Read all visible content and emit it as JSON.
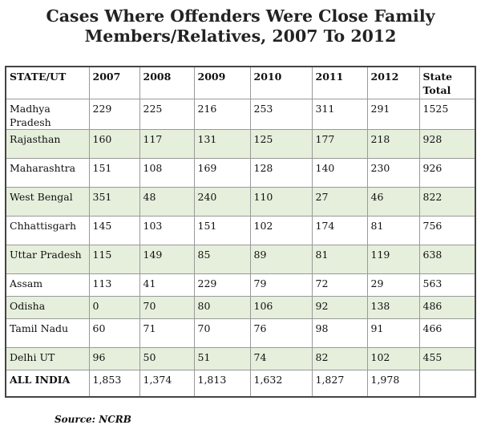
{
  "title_lines": [
    "Cases Where Offenders Were Close Family",
    "Members/Relatives, 2007 To 2012"
  ],
  "chart_data": {
    "type": "table",
    "title": "Cases Where Offenders Were Close Family Members/Relatives, 2007 To 2012",
    "columns": [
      "STATE/UT",
      "2007",
      "2008",
      "2009",
      "2010",
      "2011",
      "2012",
      "State Total"
    ],
    "rows": [
      {
        "state": "Madhya Pradesh",
        "values": [
          "229",
          "225",
          "216",
          "253",
          "311",
          "291",
          "1525"
        ]
      },
      {
        "state": "Rajasthan",
        "values": [
          "160",
          "117",
          "131",
          "125",
          "177",
          "218",
          "928"
        ]
      },
      {
        "state": "Maharashtra",
        "values": [
          "151",
          "108",
          "169",
          "128",
          "140",
          "230",
          "926"
        ]
      },
      {
        "state": "West Bengal",
        "values": [
          "351",
          "48",
          "240",
          "110",
          "27",
          "46",
          "822"
        ]
      },
      {
        "state": "Chhattisgarh",
        "values": [
          "145",
          "103",
          "151",
          "102",
          "174",
          "81",
          "756"
        ]
      },
      {
        "state": "Uttar Pradesh",
        "values": [
          "115",
          "149",
          "85",
          "89",
          "81",
          "119",
          "638"
        ]
      },
      {
        "state": "Assam",
        "values": [
          "113",
          "41",
          "229",
          "79",
          "72",
          "29",
          "563"
        ]
      },
      {
        "state": "Odisha",
        "values": [
          "0",
          "70",
          "80",
          "106",
          "92",
          "138",
          "486"
        ]
      },
      {
        "state": "Tamil Nadu",
        "values": [
          "60",
          "71",
          "70",
          "76",
          "98",
          "91",
          "466"
        ]
      },
      {
        "state": "Delhi UT",
        "values": [
          "96",
          "50",
          "51",
          "74",
          "82",
          "102",
          "455"
        ]
      }
    ],
    "total_row": {
      "state": "ALL INDIA",
      "values": [
        "1,853",
        "1,374",
        "1,813",
        "1,632",
        "1,827",
        "1,978",
        ""
      ]
    }
  },
  "source": "Source: NCRB",
  "colors": {
    "row_shade": "#e6efdc",
    "border": "#999999",
    "outer_border": "#444444"
  }
}
